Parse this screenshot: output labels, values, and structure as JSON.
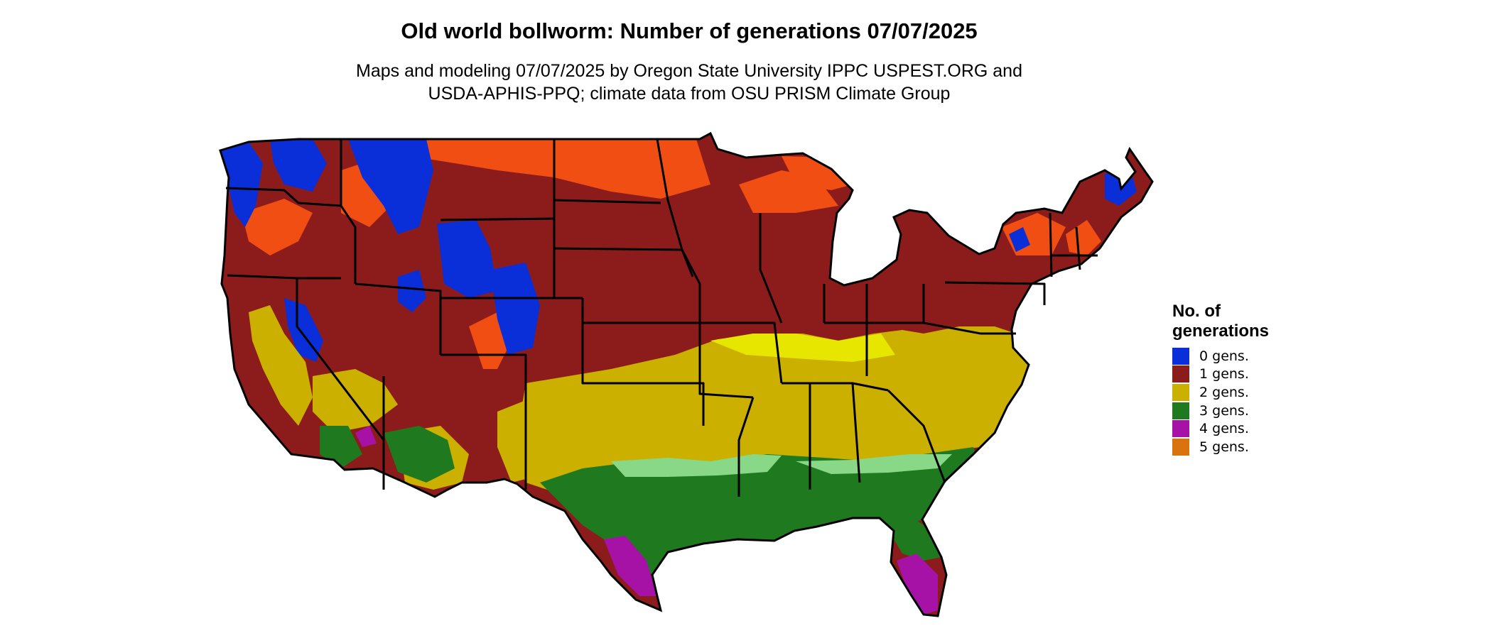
{
  "title": "Old world bollworm: Number of generations 07/07/2025",
  "subtitle": {
    "line1": "Maps and modeling 07/07/2025 by Oregon State University IPPC USPEST.ORG and",
    "line2": "USDA-APHIS-PPQ; climate data from OSU PRISM Climate Group"
  },
  "legend": {
    "title_line1": "No. of",
    "title_line2": "generations",
    "items": [
      {
        "label": "0 gens.",
        "color": "#0a2fd8"
      },
      {
        "label": "1 gens.",
        "color": "#8c1c1c"
      },
      {
        "label": "2 gens.",
        "color": "#ccb000"
      },
      {
        "label": "3 gens.",
        "color": "#1f7a1f"
      },
      {
        "label": "4 gens.",
        "color": "#a612a6"
      },
      {
        "label": "5 gens.",
        "color": "#d9730d"
      }
    ]
  },
  "map": {
    "region": "Contiguous United States",
    "colors": {
      "zero": "#0a2fd8",
      "one": "#8c1c1c",
      "one_high": "#f04e12",
      "two": "#ccb000",
      "two_high": "#e6e600",
      "three": "#1f7a1f",
      "three_low": "#88d888",
      "four": "#a612a6",
      "boundary": "#000000"
    }
  }
}
